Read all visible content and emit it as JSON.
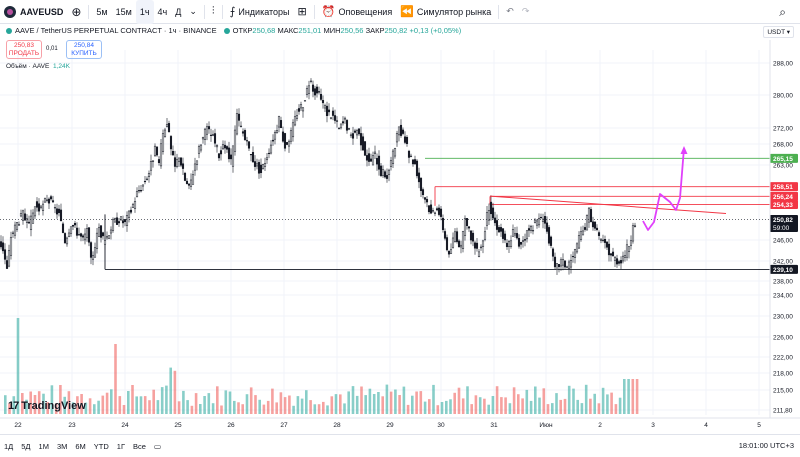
{
  "toolbar": {
    "symbol": "AAVEUSD",
    "timeframes": [
      "5м",
      "15м",
      "1ч",
      "4ч",
      "Д"
    ],
    "active_timeframe": "1ч",
    "indicators": "Индикаторы",
    "alerts": "Оповещения",
    "replay": "Симулятор рынка"
  },
  "legend": {
    "title": "AAVE / TetherUS PERPETUAL CONTRACT · 1ч · BINANCE",
    "o_label": "ОТКР",
    "o": "250,68",
    "h_label": "МАКС",
    "h": "251,01",
    "l_label": "МИН",
    "l": "250,56",
    "c_label": "ЗАКР",
    "c": "250,82",
    "chg": "+0,13 (+0,05%)"
  },
  "trade": {
    "sell_price": "250,83",
    "sell_label": "ПРОДАТЬ",
    "spread": "0,01",
    "buy_price": "250,84",
    "buy_label": "КУПИТЬ"
  },
  "volume_legend": {
    "label": "Объём · AAVE",
    "value": "1,24K"
  },
  "currency": "USDT ▾",
  "brand": "TradingView",
  "bottombar": {
    "ranges": [
      "1Д",
      "5Д",
      "1М",
      "3М",
      "6М",
      "YTD",
      "1Г",
      "Все"
    ],
    "time": "18:01:00 UTC+3"
  },
  "colors": {
    "up": "#26a69a",
    "down": "#ef5350",
    "candle": "#131722",
    "green_line": "#4caf50",
    "red_line": "#f23645",
    "magenta": "#e040fb"
  },
  "chart_data": {
    "type": "candlestick",
    "title": "AAVE / TetherUS PERPETUAL CONTRACT · 1ч · BINANCE",
    "y_ticks": [
      "288,00",
      "280,00",
      "272,00",
      "268,00",
      "263,00",
      "246,00",
      "242,00",
      "238,00",
      "234,00",
      "230,00",
      "226,00",
      "222,00",
      "218,00",
      "215,00",
      "211,80"
    ],
    "x_ticks": [
      "22",
      "23",
      "24",
      "25",
      "26",
      "27",
      "28",
      "29",
      "30",
      "31",
      "Июн",
      "2",
      "3",
      "4",
      "5"
    ],
    "ylim": [
      211.8,
      288
    ],
    "price_path": [
      [
        0,
        246
      ],
      [
        4,
        244
      ],
      [
        8,
        239
      ],
      [
        12,
        247
      ],
      [
        18,
        250
      ],
      [
        24,
        252
      ],
      [
        30,
        249
      ],
      [
        36,
        254
      ],
      [
        42,
        253
      ],
      [
        48,
        256
      ],
      [
        54,
        254
      ],
      [
        60,
        252
      ],
      [
        66,
        246
      ],
      [
        72,
        250
      ],
      [
        78,
        248
      ],
      [
        84,
        246
      ],
      [
        88,
        248
      ],
      [
        92,
        241
      ],
      [
        96,
        245
      ],
      [
        100,
        249
      ],
      [
        104,
        246
      ],
      [
        108,
        247
      ],
      [
        114,
        250
      ],
      [
        120,
        251
      ],
      [
        126,
        250
      ],
      [
        132,
        253
      ],
      [
        138,
        257
      ],
      [
        144,
        259
      ],
      [
        150,
        262
      ],
      [
        156,
        267
      ],
      [
        160,
        264
      ],
      [
        164,
        271
      ],
      [
        168,
        274
      ],
      [
        172,
        267
      ],
      [
        176,
        263
      ],
      [
        180,
        266
      ],
      [
        186,
        260
      ],
      [
        190,
        258
      ],
      [
        196,
        264
      ],
      [
        202,
        269
      ],
      [
        208,
        272
      ],
      [
        214,
        270
      ],
      [
        220,
        266
      ],
      [
        226,
        268
      ],
      [
        232,
        264
      ],
      [
        238,
        275
      ],
      [
        244,
        271
      ],
      [
        250,
        267
      ],
      [
        256,
        264
      ],
      [
        262,
        262
      ],
      [
        268,
        266
      ],
      [
        274,
        270
      ],
      [
        280,
        274
      ],
      [
        286,
        268
      ],
      [
        292,
        271
      ],
      [
        298,
        276
      ],
      [
        304,
        278
      ],
      [
        310,
        283
      ],
      [
        316,
        281
      ],
      [
        322,
        279
      ],
      [
        328,
        276
      ],
      [
        334,
        275
      ],
      [
        340,
        272
      ],
      [
        346,
        274
      ],
      [
        352,
        270
      ],
      [
        358,
        272
      ],
      [
        364,
        268
      ],
      [
        370,
        264
      ],
      [
        376,
        266
      ],
      [
        382,
        262
      ],
      [
        388,
        261
      ],
      [
        394,
        266
      ],
      [
        400,
        272
      ],
      [
        406,
        269
      ],
      [
        410,
        266
      ],
      [
        416,
        264
      ],
      [
        422,
        258
      ],
      [
        428,
        255
      ],
      [
        432,
        252
      ],
      [
        438,
        254
      ],
      [
        444,
        249
      ],
      [
        450,
        242
      ],
      [
        456,
        248
      ],
      [
        462,
        244
      ],
      [
        466,
        250
      ],
      [
        472,
        247
      ],
      [
        478,
        243
      ],
      [
        484,
        246
      ],
      [
        490,
        254
      ],
      [
        496,
        250
      ],
      [
        502,
        248
      ],
      [
        508,
        244
      ],
      [
        514,
        248
      ],
      [
        520,
        245
      ],
      [
        526,
        247
      ],
      [
        532,
        249
      ],
      [
        538,
        250
      ],
      [
        544,
        252
      ],
      [
        550,
        246
      ],
      [
        556,
        239
      ],
      [
        562,
        241
      ],
      [
        568,
        240
      ],
      [
        574,
        242
      ],
      [
        580,
        246
      ],
      [
        586,
        249
      ],
      [
        590,
        253
      ],
      [
        596,
        248
      ],
      [
        602,
        246
      ],
      [
        608,
        244
      ],
      [
        614,
        242
      ],
      [
        620,
        241
      ],
      [
        626,
        243
      ],
      [
        630,
        245
      ],
      [
        636,
        250
      ]
    ],
    "volume_bars_count": 150,
    "horizontal_levels": [
      {
        "price": 265.15,
        "label": "265,15",
        "color": "#4caf50",
        "from_x": 425
      },
      {
        "price": 258.51,
        "label": "258,51",
        "color": "#f23645",
        "from_x": 435
      },
      {
        "price": 256.24,
        "label": "256,24",
        "color": "#f23645",
        "from_x": 490
      },
      {
        "price": 254.33,
        "label": "254,33",
        "color": "#f23645",
        "from_x": 490
      },
      {
        "price": 239.1,
        "label": "239,10",
        "color": "#131722",
        "from_x": 105
      }
    ],
    "last_price": {
      "price": "250,82",
      "countdown": "59:00"
    },
    "projection_path": [
      [
        643,
        221
      ],
      [
        648,
        230
      ],
      [
        654,
        222
      ],
      [
        660,
        194
      ],
      [
        670,
        202
      ],
      [
        676,
        210
      ],
      [
        680,
        198
      ],
      [
        684,
        148
      ]
    ]
  }
}
